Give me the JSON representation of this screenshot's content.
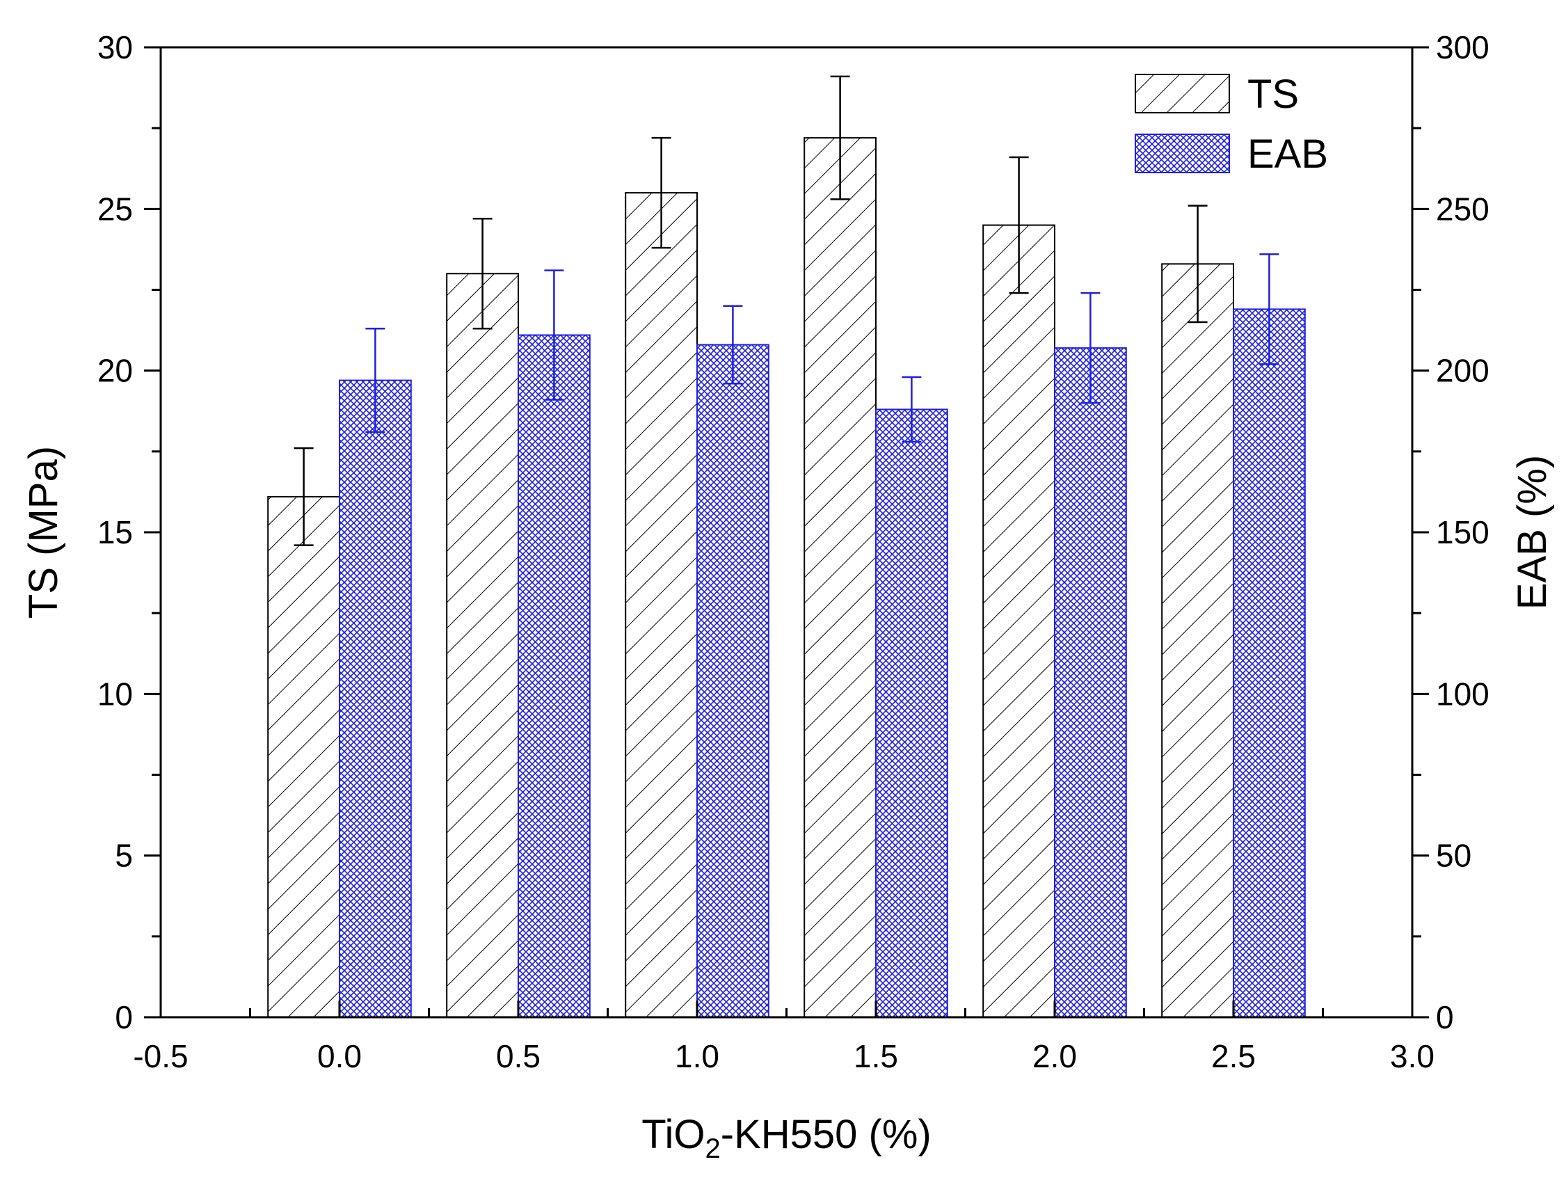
{
  "chart_data": {
    "type": "bar",
    "x_title_main": "TiO",
    "x_title_sub": "2",
    "x_title_rest": "-KH550 (%)",
    "y_left_title": "TS (MPa)",
    "y_right_title": "EAB (%)",
    "xlim": [
      -0.5,
      3.0
    ],
    "ylim_left": [
      0,
      30
    ],
    "ylim_right": [
      0,
      300
    ],
    "x_ticks": [
      -0.5,
      0.0,
      0.5,
      1.0,
      1.5,
      2.0,
      2.5,
      3.0
    ],
    "x_tick_labels": [
      "-0.5",
      "0.0",
      "0.5",
      "1.0",
      "1.5",
      "2.0",
      "2.5",
      "3.0"
    ],
    "y_left_ticks": [
      0,
      5,
      10,
      15,
      20,
      25,
      30
    ],
    "y_left_tick_labels": [
      "0",
      "5",
      "10",
      "15",
      "20",
      "25",
      "30"
    ],
    "y_right_ticks": [
      0,
      50,
      100,
      150,
      200,
      250,
      300
    ],
    "y_right_tick_labels": [
      "0",
      "50",
      "100",
      "150",
      "200",
      "250",
      "300"
    ],
    "categories": [
      0.0,
      0.5,
      1.0,
      1.5,
      2.0,
      2.5
    ],
    "legend_position": "top-right",
    "series": [
      {
        "name": "TS",
        "axis": "left",
        "color": "#000000",
        "pattern": "diagonal-hatch",
        "values": [
          16.1,
          23.0,
          25.5,
          27.2,
          24.5,
          23.3
        ],
        "errors": [
          1.5,
          1.7,
          1.7,
          1.9,
          2.1,
          1.8
        ]
      },
      {
        "name": "EAB",
        "axis": "right",
        "color": "#1f1fe0",
        "pattern": "cross-hatch",
        "values": [
          197,
          211,
          208,
          188,
          207,
          219
        ],
        "errors": [
          16,
          20,
          12,
          10,
          17,
          17
        ]
      }
    ]
  }
}
